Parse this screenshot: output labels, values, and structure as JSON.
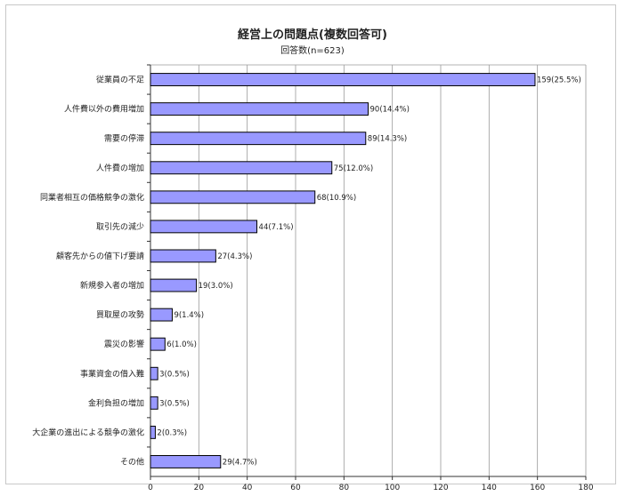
{
  "chart_data": {
    "type": "bar",
    "orientation": "horizontal",
    "title": "経営上の問題点(複数回答可)",
    "subtitle": "回答数(n=623)",
    "categories": [
      "従業員の不足",
      "人件費以外の費用増加",
      "需要の停滞",
      "人件費の増加",
      "同業者相互の価格競争の激化",
      "取引先の減少",
      "顧客先からの値下げ要請",
      "新規参入者の増加",
      "買取屋の攻勢",
      "震災の影響",
      "事業資金の借入難",
      "金利負担の増加",
      "大企業の進出による競争の激化",
      "その他"
    ],
    "values": [
      159,
      90,
      89,
      75,
      68,
      44,
      27,
      19,
      9,
      6,
      3,
      3,
      2,
      29
    ],
    "data_labels": [
      "159(25.5%)",
      "90(14.4%)",
      "89(14.3%)",
      "75(12.0%)",
      "68(10.9%)",
      "44(7.1%)",
      "27(4.3%)",
      "19(3.0%)",
      "9(1.4%)",
      "6(1.0%)",
      "3(0.5%)",
      "3(0.5%)",
      "2(0.3%)",
      "29(4.7%)"
    ],
    "xlim": [
      0,
      180
    ],
    "xticks": [
      0,
      20,
      40,
      60,
      80,
      100,
      120,
      140,
      160,
      180
    ],
    "grid": true,
    "bar_color": "#9999ff",
    "bar_edge_color": "#000000"
  }
}
